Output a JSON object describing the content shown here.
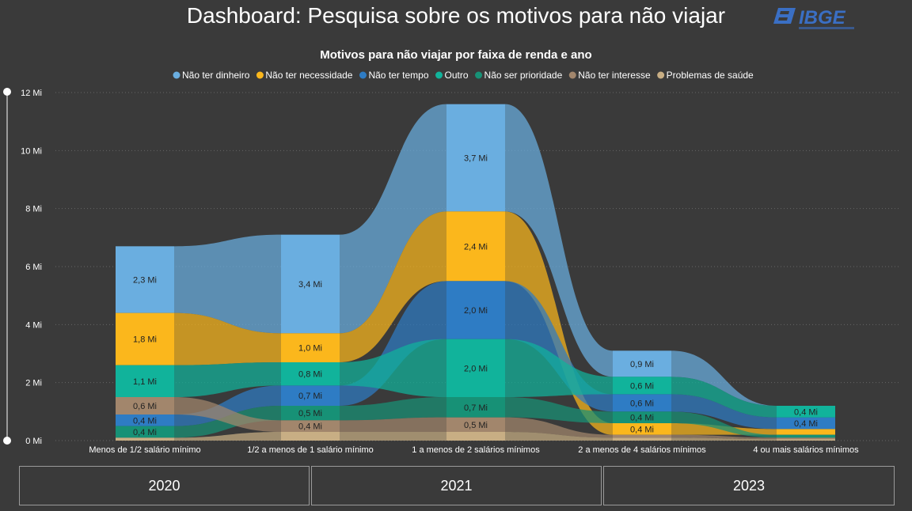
{
  "page": {
    "title": "Dashboard: Pesquisa sobre os motivos para não viajar",
    "logo_text": "IBGE"
  },
  "years": [
    "2020",
    "2021",
    "2023"
  ],
  "chart_data": {
    "type": "area",
    "subtype": "ribbon-stacked",
    "title": "Motivos para não viajar por faixa de renda e ano",
    "legend_position": "top",
    "grid": true,
    "ylim": [
      0,
      12
    ],
    "y_ticks": [
      "0 Mi",
      "2 Mi",
      "4 Mi",
      "6 Mi",
      "8 Mi",
      "10 Mi",
      "12 Mi"
    ],
    "categories": [
      "Menos de 1/2 salário mínimo",
      "1/2 a menos de 1 salário mínimo",
      "1 a menos de 2 salários mínimos",
      "2 a menos de 4 salários mínimos",
      "4 ou mais salários mínimos"
    ],
    "series": [
      {
        "name": "Não ter dinheiro",
        "color": "#6aaee0",
        "values": [
          2.3,
          3.4,
          3.7,
          0.9,
          0.0
        ],
        "labels": [
          "2,3 Mi",
          "3,4 Mi",
          "3,7 Mi",
          "0,9 Mi",
          ""
        ]
      },
      {
        "name": "Não ter necessidade",
        "color": "#fbb71c",
        "values": [
          1.8,
          1.0,
          2.4,
          0.4,
          0.2
        ],
        "labels": [
          "1,8 Mi",
          "1,0 Mi",
          "2,4 Mi",
          "0,4 Mi",
          ""
        ]
      },
      {
        "name": "Não ter tempo",
        "color": "#2e7cc4",
        "values": [
          0.4,
          0.7,
          2.0,
          0.6,
          0.4
        ],
        "labels": [
          "0,4 Mi",
          "0,7 Mi",
          "2,0 Mi",
          "0,6 Mi",
          "0,4 Mi"
        ]
      },
      {
        "name": "Outro",
        "color": "#11b39b",
        "values": [
          1.1,
          0.8,
          2.0,
          0.6,
          0.4
        ],
        "labels": [
          "1,1 Mi",
          "0,8 Mi",
          "2,0 Mi",
          "0,6 Mi",
          "0,4 Mi"
        ]
      },
      {
        "name": "Não ser prioridade",
        "color": "#179176",
        "values": [
          0.4,
          0.5,
          0.7,
          0.4,
          0.1
        ],
        "labels": [
          "0,4 Mi",
          "0,5 Mi",
          "0,7 Mi",
          "0,4 Mi",
          ""
        ]
      },
      {
        "name": "Não ter interesse",
        "color": "#a2866c",
        "values": [
          0.6,
          0.4,
          0.5,
          0.1,
          0.05
        ],
        "labels": [
          "0,6 Mi",
          "0,4 Mi",
          "0,5 Mi",
          "",
          ""
        ]
      },
      {
        "name": "Problemas de saúde",
        "color": "#c8ae84",
        "values": [
          0.1,
          0.3,
          0.3,
          0.1,
          0.05
        ],
        "labels": [
          "",
          "",
          "",
          "",
          ""
        ]
      }
    ],
    "stack_order": [
      [
        6,
        4,
        2,
        5,
        3,
        1,
        0
      ],
      [
        6,
        5,
        4,
        2,
        3,
        1,
        0
      ],
      [
        6,
        5,
        4,
        3,
        2,
        1,
        0
      ],
      [
        6,
        5,
        1,
        4,
        2,
        3,
        0
      ],
      [
        6,
        5,
        4,
        1,
        2,
        3,
        0
      ]
    ]
  }
}
